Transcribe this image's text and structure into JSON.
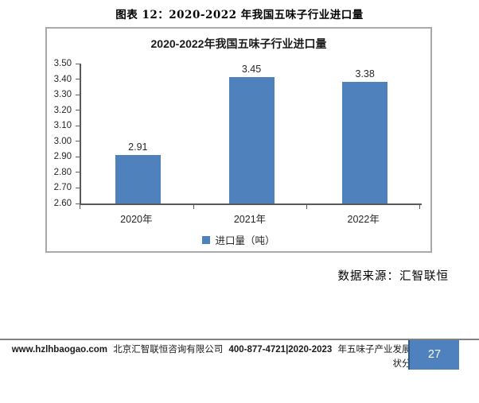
{
  "page": {
    "title": "图表 12：2020-2022 年我国五味子行业进口量",
    "source_note": "数据来源：汇智联恒"
  },
  "chart_data": {
    "type": "bar",
    "title": "2020-2022年我国五味子行业进口量",
    "categories": [
      "2020年",
      "2021年",
      "2022年"
    ],
    "series": [
      {
        "name": "进口量（吨）",
        "values": [
          2.91,
          3.45,
          3.38
        ]
      }
    ],
    "value_labels": [
      "2.91",
      "3.45",
      "3.38"
    ],
    "ylim": [
      2.6,
      3.5
    ],
    "ytick_labels": [
      "3.50",
      "3.40",
      "3.30",
      "3.20",
      "3.10",
      "3.00",
      "2.90",
      "2.80",
      "2.70",
      "2.60"
    ],
    "grid": false,
    "legend_position": "bottom",
    "bar_color": "#4F81BD",
    "axis_color": "#595959"
  },
  "footer": {
    "website": "www.hzlhbaogao.com",
    "company": "北京汇智联恒咨询有限公司",
    "phone_years": "400-877-4721|2020-2023",
    "report_tail_line1": "年五味子产业发展现",
    "report_tail_line2": "状分析",
    "page_number": "27",
    "badge_color": "#4E81BD"
  }
}
